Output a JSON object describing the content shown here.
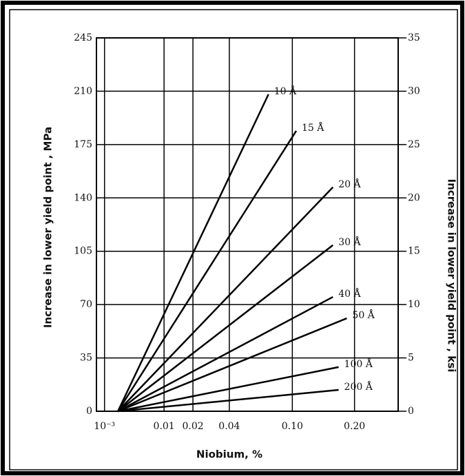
{
  "chart_data": {
    "type": "line",
    "x_label": "Niobium, %",
    "y_label": "Increase  in  lower  yield  point , MPa",
    "y2_label": "Increase  in  lower  yield  point ,  ksi",
    "x_scale": "cbrt",
    "xlim": [
      0.0006,
      0.3
    ],
    "xticks": [
      {
        "value": 0.001,
        "label": "10⁻³"
      },
      0.01,
      0.02,
      0.04,
      {
        "value": 0.1,
        "label": "0.10"
      },
      {
        "value": 0.2,
        "label": "0.20"
      }
    ],
    "ylim": [
      0,
      245
    ],
    "yticks": [
      0,
      35,
      70,
      105,
      140,
      175,
      210,
      245
    ],
    "y2lim": [
      0,
      35
    ],
    "y2ticks": [
      0,
      5,
      10,
      15,
      20,
      25,
      30,
      35
    ],
    "grid": true,
    "color": "#000000",
    "series": [
      {
        "name": "10 Å",
        "x": [
          0.002,
          0.073
        ],
        "values": [
          0,
          208
        ]
      },
      {
        "name": "15 Å",
        "x": [
          0.002,
          0.105
        ],
        "values": [
          0,
          184
        ]
      },
      {
        "name": "20 Å",
        "x": [
          0.002,
          0.16
        ],
        "values": [
          0,
          147
        ]
      },
      {
        "name": "30 Å",
        "x": [
          0.002,
          0.16
        ],
        "values": [
          0,
          109
        ]
      },
      {
        "name": "40 Å",
        "x": [
          0.002,
          0.16
        ],
        "values": [
          0,
          75
        ]
      },
      {
        "name": "50 Å",
        "x": [
          0.002,
          0.185
        ],
        "values": [
          0,
          61
        ]
      },
      {
        "name": "100 Å",
        "x": [
          0.002,
          0.17
        ],
        "values": [
          0,
          29
        ]
      },
      {
        "name": "200 Å",
        "x": [
          0.002,
          0.17
        ],
        "values": [
          0,
          14
        ]
      }
    ]
  }
}
